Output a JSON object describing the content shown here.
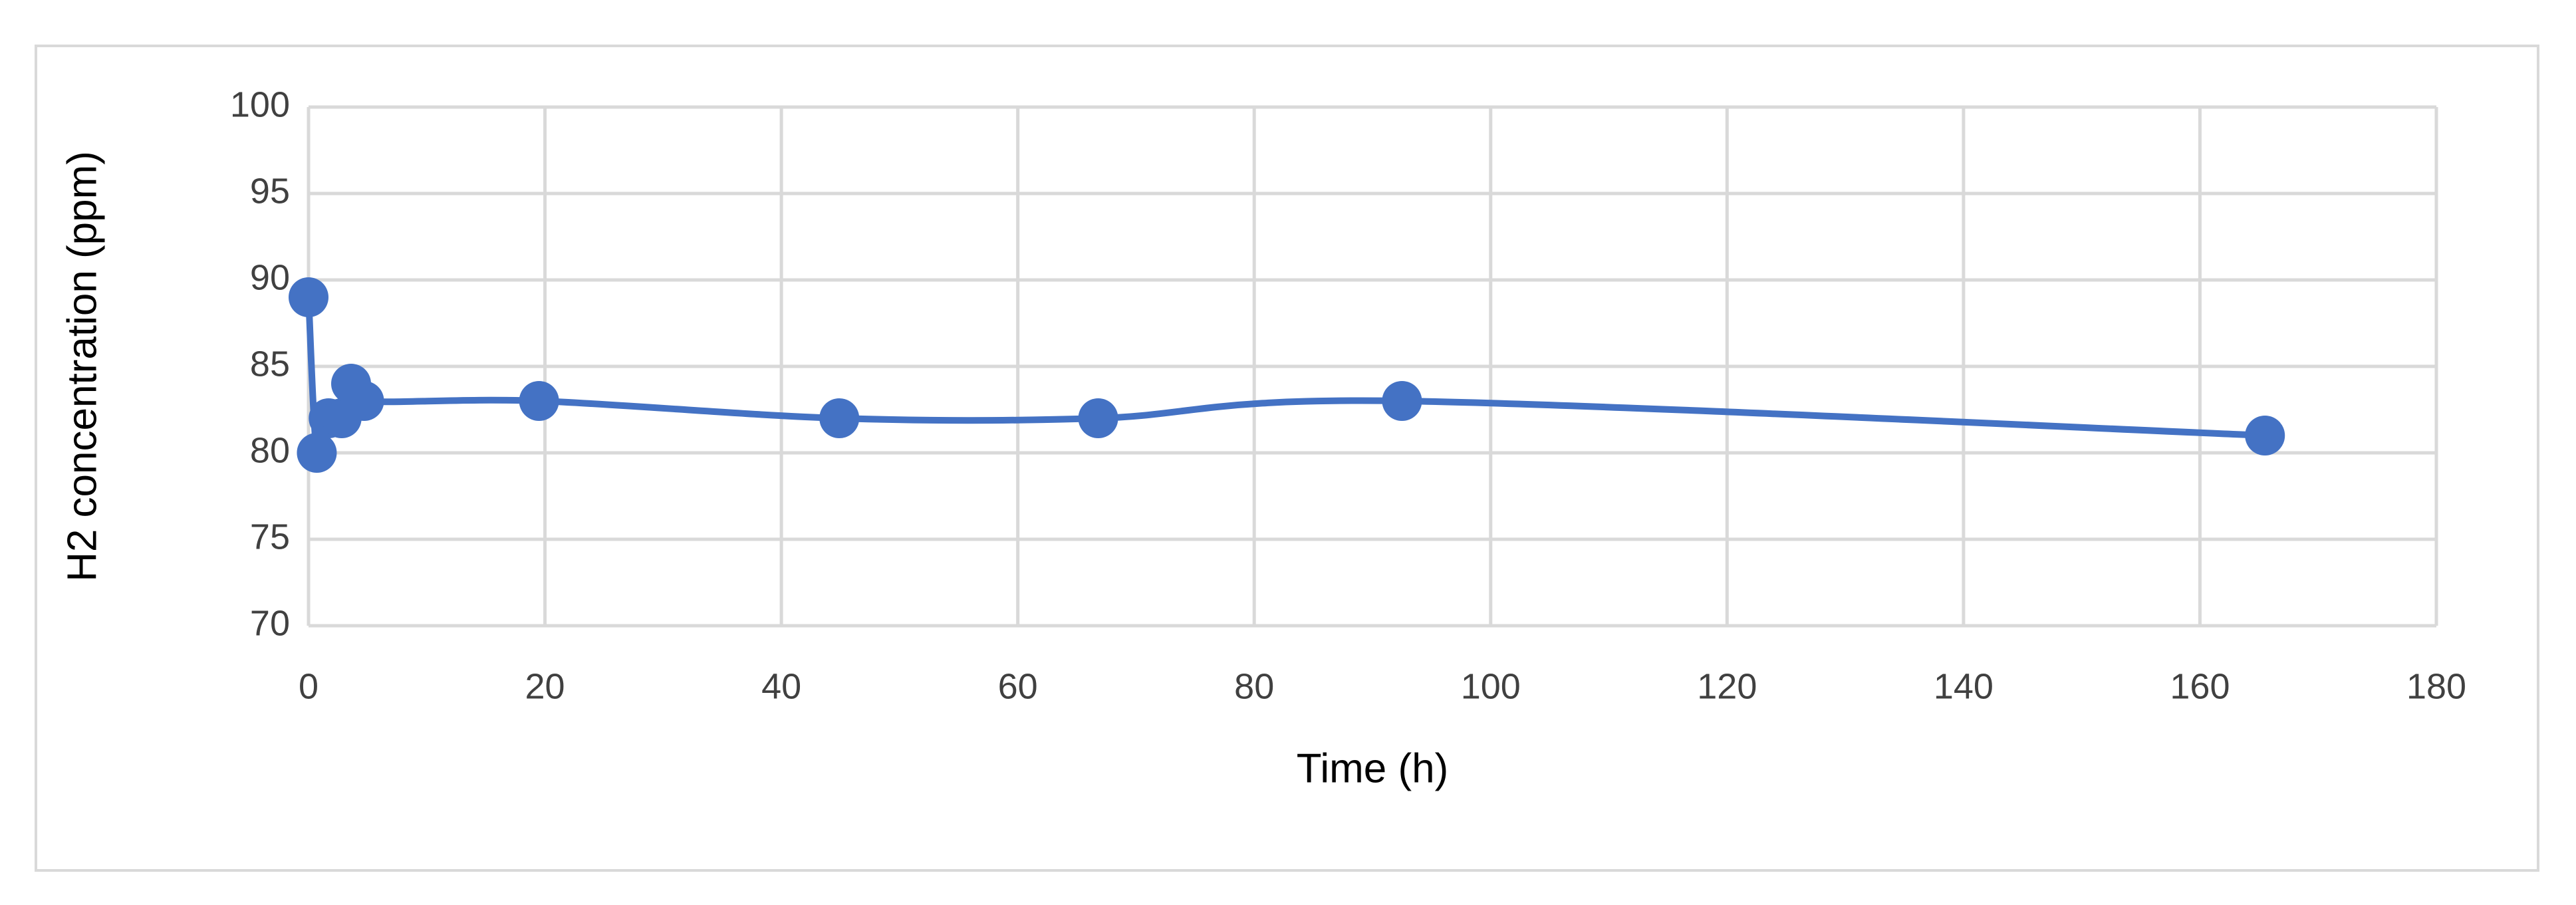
{
  "chart_data": {
    "type": "line",
    "x_label": "Time (h)",
    "y_label": "H2 concentration (ppm)",
    "x": [
      0,
      0.7,
      1.7,
      2.8,
      3.6,
      4.7,
      19.5,
      44.9,
      66.8,
      92.5,
      165.5
    ],
    "series": [
      {
        "color": "#4472c4",
        "values": [
          89,
          80,
          82,
          82,
          84,
          83,
          83,
          82,
          82,
          83,
          81
        ]
      }
    ],
    "xlim": [
      0,
      180
    ],
    "xticks": [
      0,
      20,
      40,
      60,
      80,
      100,
      120,
      140,
      160,
      180
    ],
    "ylim": [
      70,
      100
    ],
    "yticks": [
      70,
      75,
      80,
      85,
      90,
      95,
      100
    ],
    "grid": true,
    "smooth": true,
    "markers": true
  }
}
